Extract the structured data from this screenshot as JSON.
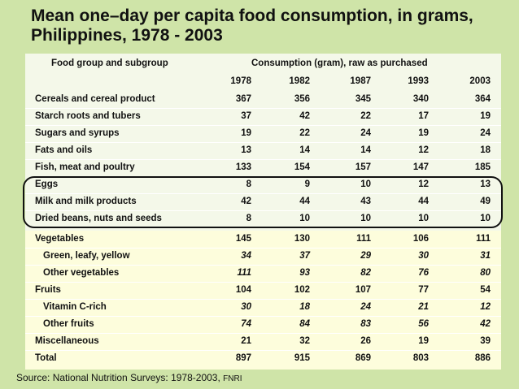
{
  "title_line1": "Mean one–day per capita food consumption, in grams,",
  "title_line2": "Philippines, 1978 - 2003",
  "header": {
    "group_label": "Food group and subgroup",
    "consumption_label": "Consumption (gram), raw as purchased",
    "years": [
      "1978",
      "1982",
      "1987",
      "1993",
      "2003"
    ]
  },
  "rows": [
    {
      "label": "Cereals and cereal product",
      "values": [
        "367",
        "356",
        "345",
        "340",
        "364"
      ]
    },
    {
      "label": "Starch roots and tubers",
      "values": [
        "37",
        "42",
        "22",
        "17",
        "19"
      ]
    },
    {
      "label": "Sugars and syrups",
      "values": [
        "19",
        "22",
        "24",
        "19",
        "24"
      ]
    },
    {
      "label": "Fats and oils",
      "values": [
        "13",
        "14",
        "14",
        "12",
        "18"
      ]
    },
    {
      "label": "Fish, meat and poultry",
      "values": [
        "133",
        "154",
        "157",
        "147",
        "185"
      ]
    },
    {
      "label": "Eggs",
      "values": [
        "8",
        "9",
        "10",
        "12",
        "13"
      ]
    },
    {
      "label": "Milk and milk products",
      "values": [
        "42",
        "44",
        "43",
        "44",
        "49"
      ]
    },
    {
      "label": "Dried beans, nuts and seeds",
      "values": [
        "8",
        "10",
        "10",
        "10",
        "10"
      ]
    },
    {
      "label": "Vegetables",
      "values": [
        "145",
        "130",
        "111",
        "106",
        "111"
      ]
    },
    {
      "label": "Green, leafy, yellow",
      "values": [
        "34",
        "37",
        "29",
        "30",
        "31"
      ]
    },
    {
      "label": "Other vegetables",
      "values": [
        "111",
        "93",
        "82",
        "76",
        "80"
      ]
    },
    {
      "label": "Fruits",
      "values": [
        "104",
        "102",
        "107",
        "77",
        "54"
      ]
    },
    {
      "label": "Vitamin C-rich",
      "values": [
        "30",
        "18",
        "24",
        "21",
        "12"
      ]
    },
    {
      "label": "Other fruits",
      "values": [
        "74",
        "84",
        "83",
        "56",
        "42"
      ]
    },
    {
      "label": "Miscellaneous",
      "values": [
        "21",
        "32",
        "26",
        "19",
        "39"
      ]
    },
    {
      "label": "Total",
      "values": [
        "897",
        "915",
        "869",
        "803",
        "886"
      ]
    }
  ],
  "source_main": "Source: National Nutrition Surveys:  1978-2003, ",
  "source_org": "FNRI",
  "colors": {
    "background": "#cfe4a8",
    "table": "#f4f8e9",
    "highlight_band": "#fdfddc"
  }
}
